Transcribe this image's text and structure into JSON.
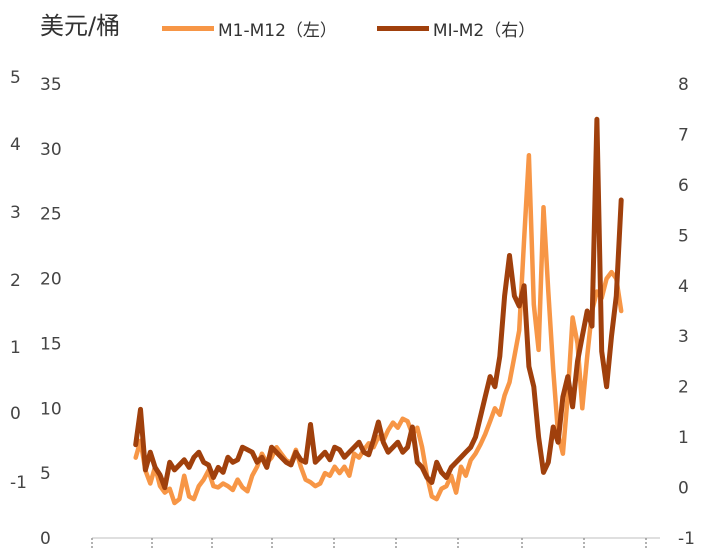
{
  "unit_label": "美元/桶",
  "legend": [
    {
      "label": "M1-M12（左）",
      "color": "#F79646"
    },
    {
      "label": "MI-M2（右）",
      "color": "#A0400C"
    }
  ],
  "chart_data": {
    "type": "line",
    "title": "",
    "xlabel": "",
    "left_axis": {
      "ylim": [
        0,
        35
      ],
      "ticks": [
        "0",
        "5",
        "10",
        "15",
        "20",
        "25",
        "30",
        "35"
      ]
    },
    "right_axis": {
      "ylim": [
        -1,
        8
      ],
      "ticks": [
        "-1",
        "0",
        "1",
        "2",
        "3",
        "4",
        "5",
        "6",
        "7",
        "8"
      ]
    },
    "outer_left_axis": {
      "ticks": [
        "-1",
        "0",
        "1",
        "2",
        "3",
        "4",
        "5"
      ]
    },
    "x_positions": [
      0,
      1,
      2,
      3,
      4,
      5,
      6,
      7,
      8,
      9,
      10,
      11,
      12,
      13,
      14,
      15,
      16,
      17,
      18,
      19,
      20,
      21,
      22,
      23,
      24,
      25,
      26,
      27,
      28,
      29,
      30,
      31,
      32,
      33,
      34,
      35,
      36,
      37,
      38,
      39,
      40,
      41,
      42,
      43,
      44,
      45,
      46,
      47,
      48,
      49,
      50,
      51,
      52,
      53,
      54,
      55,
      56,
      57,
      58,
      59,
      60,
      61,
      62,
      63,
      64,
      65,
      66,
      67,
      68,
      69,
      70,
      71,
      72,
      73,
      74,
      75,
      76,
      77,
      78,
      79,
      80,
      81,
      82,
      83,
      84,
      85,
      86,
      87,
      88,
      89,
      90,
      91,
      92,
      93,
      94,
      95,
      96,
      97,
      98,
      99,
      100
    ],
    "x_range": [
      -9,
      108
    ],
    "grid": false,
    "legend_position": "top",
    "series": [
      {
        "name": "M1-M12（左）",
        "axis": "left",
        "color": "#F79646",
        "values": [
          6.2,
          7.5,
          5.2,
          4.2,
          5.5,
          4.0,
          3.5,
          3.8,
          2.7,
          3.0,
          4.8,
          3.2,
          3.0,
          4.0,
          4.5,
          5.2,
          4.0,
          3.9,
          4.2,
          4.0,
          3.7,
          4.5,
          3.9,
          3.6,
          4.8,
          5.5,
          6.5,
          5.8,
          6.2,
          7.0,
          6.5,
          6.0,
          5.8,
          6.8,
          5.5,
          4.5,
          4.3,
          4.0,
          4.2,
          5.0,
          4.8,
          5.5,
          5.0,
          5.5,
          4.8,
          6.5,
          6.2,
          6.8,
          7.3,
          7.0,
          7.8,
          7.5,
          8.3,
          8.9,
          8.5,
          9.2,
          9.0,
          8.0,
          8.5,
          7.0,
          4.8,
          3.2,
          3.0,
          3.8,
          4.0,
          4.8,
          3.5,
          5.5,
          4.8,
          6.0,
          6.5,
          7.2,
          8.0,
          9.0,
          10.0,
          9.5,
          11.0,
          12.0,
          14.0,
          16.0,
          23.0,
          29.5,
          18.0,
          14.5,
          25.5,
          19.0,
          13.0,
          8.0,
          6.5,
          11.0,
          17.0,
          15.0,
          10.0,
          14.0,
          17.5,
          19.0,
          18.5,
          20.0,
          20.5,
          20.0,
          17.5
        ]
      },
      {
        "name": "MI-M2（右）",
        "axis": "right",
        "color": "#A0400C",
        "values": [
          0.85,
          1.55,
          0.35,
          0.7,
          0.4,
          0.25,
          0.0,
          0.5,
          0.35,
          0.45,
          0.55,
          0.4,
          0.6,
          0.7,
          0.5,
          0.45,
          0.2,
          0.4,
          0.3,
          0.6,
          0.5,
          0.55,
          0.8,
          0.75,
          0.7,
          0.5,
          0.6,
          0.4,
          0.8,
          0.7,
          0.6,
          0.5,
          0.45,
          0.7,
          0.55,
          0.5,
          1.25,
          0.5,
          0.6,
          0.7,
          0.55,
          0.8,
          0.75,
          0.6,
          0.7,
          0.8,
          0.9,
          0.7,
          0.65,
          0.95,
          1.3,
          0.9,
          0.7,
          0.8,
          0.9,
          0.7,
          0.8,
          1.2,
          0.5,
          0.4,
          0.2,
          0.1,
          0.5,
          0.3,
          0.2,
          0.4,
          0.5,
          0.6,
          0.7,
          0.8,
          1.0,
          1.4,
          1.8,
          2.2,
          2.0,
          2.6,
          3.8,
          4.6,
          3.8,
          3.6,
          4.0,
          2.4,
          2.0,
          1.0,
          0.3,
          0.5,
          1.2,
          0.9,
          1.8,
          2.2,
          1.6,
          2.5,
          3.0,
          3.5,
          3.2,
          7.3,
          2.7,
          2.0,
          3.0,
          3.8,
          5.7
        ]
      }
    ]
  }
}
